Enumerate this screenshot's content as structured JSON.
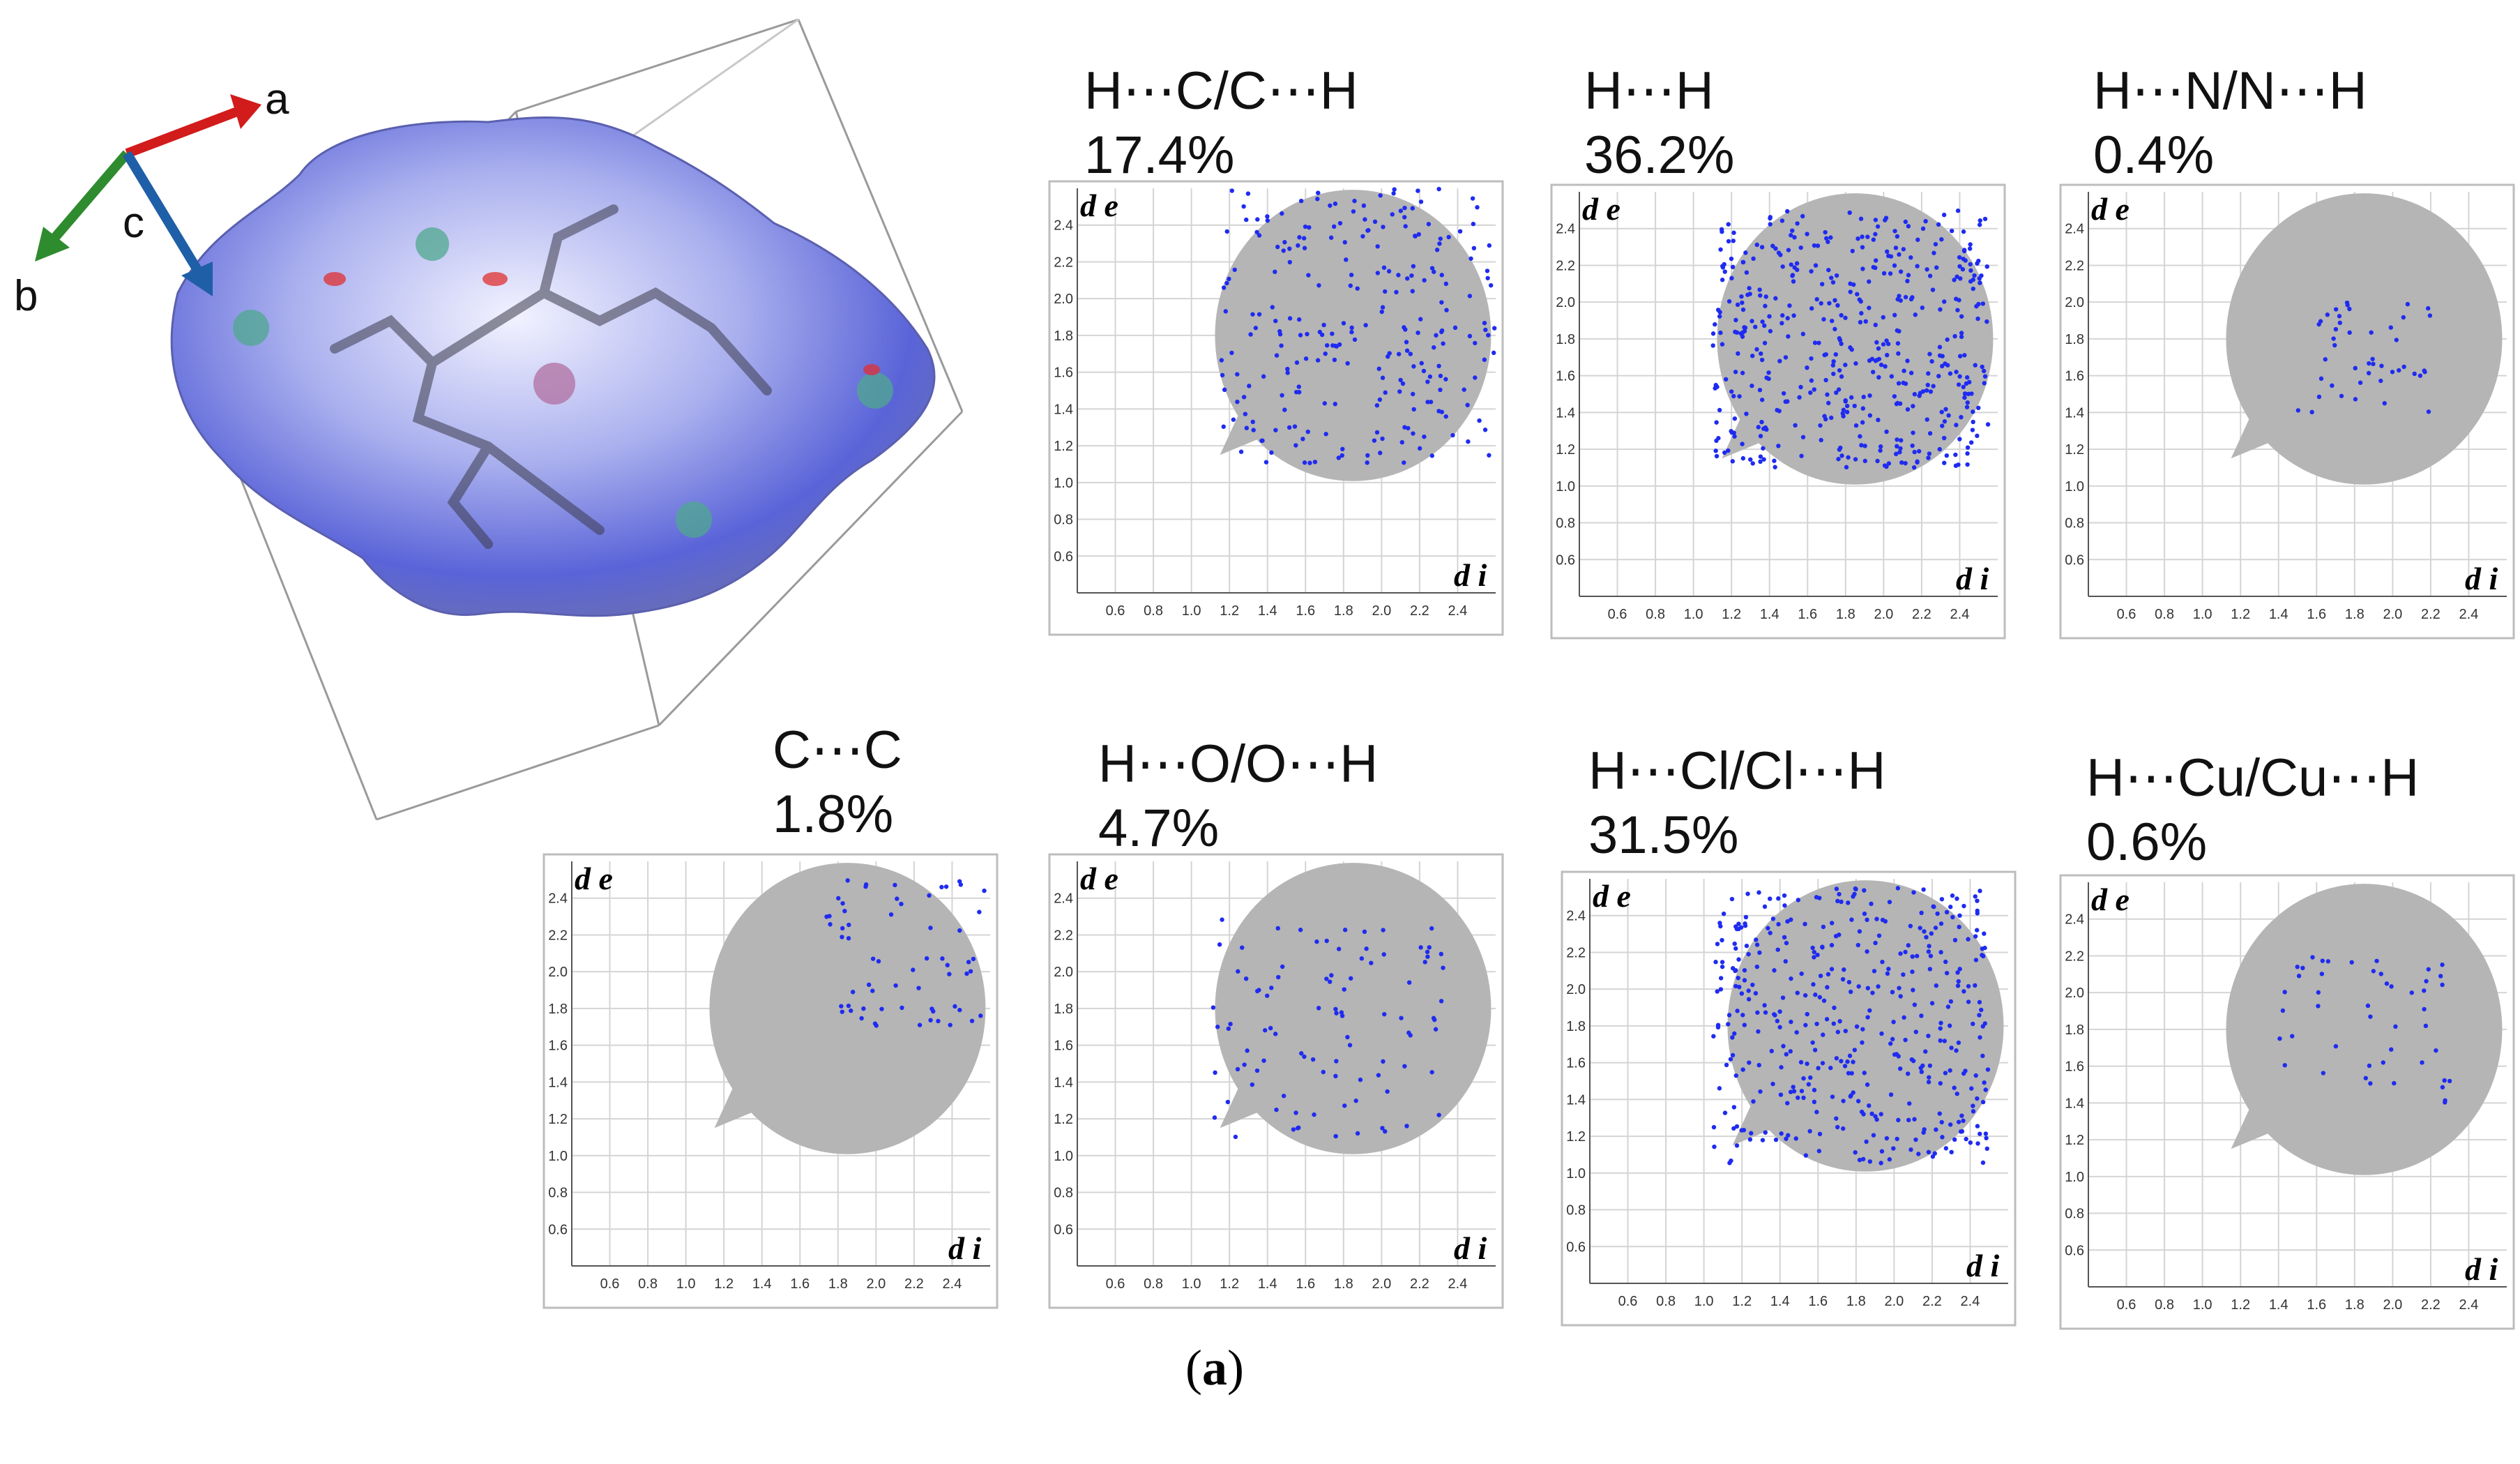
{
  "figure": {
    "caption_letter": "a"
  },
  "surface_view": {
    "axes": [
      {
        "label": "a",
        "color": "#d21b1b"
      },
      {
        "label": "b",
        "color": "#2e8b2e"
      },
      {
        "label": "c",
        "color": "#1f5fa8"
      }
    ]
  },
  "chart_data": [
    {
      "type": "scatter",
      "title_line1": "H⋯C/C⋯H",
      "title_line2": "17.4%",
      "percent": 17.4,
      "xlabel": "d i",
      "ylabel": "d e",
      "xlim": [
        0.4,
        2.6
      ],
      "ylim": [
        0.4,
        2.6
      ],
      "x_ticks": [
        0.6,
        0.8,
        1.0,
        1.2,
        1.4,
        1.6,
        1.8,
        2.0,
        2.2,
        2.4
      ],
      "y_ticks": [
        0.6,
        0.8,
        1.0,
        1.2,
        1.4,
        1.6,
        1.8,
        2.0,
        2.2,
        2.4
      ],
      "grid": true,
      "highlight_regions": [
        {
          "x": [
            1.15,
            2.6
          ],
          "y": [
            1.1,
            2.6
          ]
        }
      ]
    },
    {
      "type": "scatter",
      "title_line1": "H⋯H",
      "title_line2": "36.2%",
      "percent": 36.2,
      "xlabel": "d i",
      "ylabel": "d e",
      "xlim": [
        0.4,
        2.6
      ],
      "ylim": [
        0.4,
        2.6
      ],
      "x_ticks": [
        0.6,
        0.8,
        1.0,
        1.2,
        1.4,
        1.6,
        1.8,
        2.0,
        2.2,
        2.4
      ],
      "y_ticks": [
        0.6,
        0.8,
        1.0,
        1.2,
        1.4,
        1.6,
        1.8,
        2.0,
        2.2,
        2.4
      ],
      "grid": true,
      "highlight_regions": [
        {
          "x": [
            1.1,
            2.55
          ],
          "y": [
            1.1,
            2.5
          ]
        }
      ]
    },
    {
      "type": "scatter",
      "title_line1": "H⋯N/N⋯H",
      "title_line2": "0.4%",
      "percent": 0.4,
      "xlabel": "d i",
      "ylabel": "d e",
      "xlim": [
        0.4,
        2.6
      ],
      "ylim": [
        0.4,
        2.6
      ],
      "x_ticks": [
        0.6,
        0.8,
        1.0,
        1.2,
        1.4,
        1.6,
        1.8,
        2.0,
        2.2,
        2.4
      ],
      "y_ticks": [
        0.6,
        0.8,
        1.0,
        1.2,
        1.4,
        1.6,
        1.8,
        2.0,
        2.2,
        2.4
      ],
      "grid": true,
      "highlight_regions": [
        {
          "x": [
            1.5,
            2.2
          ],
          "y": [
            1.4,
            2.05
          ]
        }
      ]
    },
    {
      "type": "scatter",
      "title_line1": "C⋯C",
      "title_line2": "1.8%",
      "percent": 1.8,
      "xlabel": "d i",
      "ylabel": "d e",
      "xlim": [
        0.4,
        2.6
      ],
      "ylim": [
        0.4,
        2.6
      ],
      "x_ticks": [
        0.6,
        0.8,
        1.0,
        1.2,
        1.4,
        1.6,
        1.8,
        2.0,
        2.2,
        2.4
      ],
      "y_ticks": [
        0.6,
        0.8,
        1.0,
        1.2,
        1.4,
        1.6,
        1.8,
        2.0,
        2.2,
        2.4
      ],
      "grid": true,
      "highlight_regions": [
        {
          "x": [
            1.7,
            2.6
          ],
          "y": [
            1.7,
            2.5
          ]
        }
      ]
    },
    {
      "type": "scatter",
      "title_line1": "H⋯O/O⋯H",
      "title_line2": "4.7%",
      "percent": 4.7,
      "xlabel": "d i",
      "ylabel": "d e",
      "xlim": [
        0.4,
        2.6
      ],
      "ylim": [
        0.4,
        2.6
      ],
      "x_ticks": [
        0.6,
        0.8,
        1.0,
        1.2,
        1.4,
        1.6,
        1.8,
        2.0,
        2.2,
        2.4
      ],
      "y_ticks": [
        0.6,
        0.8,
        1.0,
        1.2,
        1.4,
        1.6,
        1.8,
        2.0,
        2.2,
        2.4
      ],
      "grid": true,
      "highlight_regions": [
        {
          "x": [
            1.1,
            2.35
          ],
          "y": [
            1.1,
            2.3
          ]
        }
      ]
    },
    {
      "type": "scatter",
      "title_line1": "H⋯Cl/Cl⋯H",
      "title_line2": "31.5%",
      "percent": 31.5,
      "xlabel": "d i",
      "ylabel": "d e",
      "xlim": [
        0.4,
        2.6
      ],
      "ylim": [
        0.4,
        2.6
      ],
      "x_ticks": [
        0.6,
        0.8,
        1.0,
        1.2,
        1.4,
        1.6,
        1.8,
        2.0,
        2.2,
        2.4
      ],
      "y_ticks": [
        0.6,
        0.8,
        1.0,
        1.2,
        1.4,
        1.6,
        1.8,
        2.0,
        2.2,
        2.4
      ],
      "grid": true,
      "highlight_regions": [
        {
          "x": [
            1.05,
            2.5
          ],
          "y": [
            1.05,
            2.55
          ]
        }
      ]
    },
    {
      "type": "scatter",
      "title_line1": "H⋯Cu/Cu⋯H",
      "title_line2": "0.6%",
      "percent": 0.6,
      "xlabel": "d i",
      "ylabel": "d e",
      "xlim": [
        0.4,
        2.6
      ],
      "ylim": [
        0.4,
        2.6
      ],
      "x_ticks": [
        0.6,
        0.8,
        1.0,
        1.2,
        1.4,
        1.6,
        1.8,
        2.0,
        2.2,
        2.4
      ],
      "y_ticks": [
        0.6,
        0.8,
        1.0,
        1.2,
        1.4,
        1.6,
        1.8,
        2.0,
        2.2,
        2.4
      ],
      "grid": true,
      "highlight_regions": [
        {
          "x": [
            1.4,
            2.3
          ],
          "y": [
            1.4,
            2.2
          ]
        }
      ]
    }
  ]
}
